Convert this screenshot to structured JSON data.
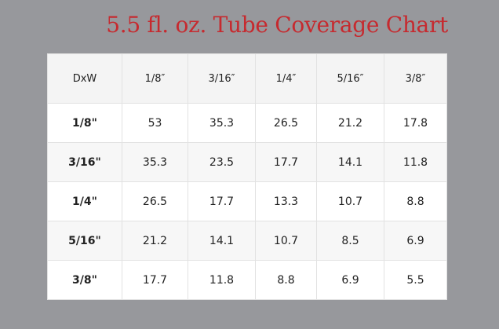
{
  "title": "5.5 fl. oz. Tube Coverage Chart",
  "colors": {
    "background": "#97989c",
    "title": "#c62a2f",
    "table_background": "#ffffff",
    "header_background": "#f4f4f4",
    "grid_line": "#e2e2e2"
  },
  "chart_data": {
    "type": "table",
    "title": "5.5 fl. oz. Tube Coverage Chart",
    "corner_label": "DxW",
    "columns": [
      "1/8″",
      "3/16″",
      "1/4″",
      "5/16″",
      "3/8″"
    ],
    "rows": [
      {
        "label": "1/8\"",
        "values": [
          "53",
          "35.3",
          "26.5",
          "21.2",
          "17.8"
        ]
      },
      {
        "label": "3/16\"",
        "values": [
          "35.3",
          "23.5",
          "17.7",
          "14.1",
          "11.8"
        ]
      },
      {
        "label": "1/4\"",
        "values": [
          "26.5",
          "17.7",
          "13.3",
          "10.7",
          "8.8"
        ]
      },
      {
        "label": "5/16\"",
        "values": [
          "21.2",
          "14.1",
          "10.7",
          "8.5",
          "6.9"
        ]
      },
      {
        "label": "3/8\"",
        "values": [
          "17.7",
          "11.8",
          "8.8",
          "6.9",
          "5.5"
        ]
      }
    ]
  }
}
